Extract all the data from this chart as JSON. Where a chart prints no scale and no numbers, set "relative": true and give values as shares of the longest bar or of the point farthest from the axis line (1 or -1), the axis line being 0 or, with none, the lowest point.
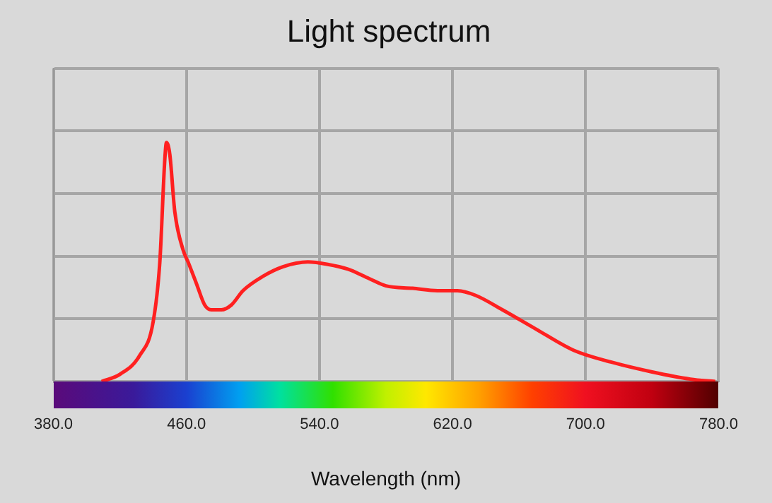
{
  "chart_data": {
    "type": "line",
    "title": "Light spectrum",
    "xlabel": "Wavelength (nm)",
    "relative": true,
    "grid": true,
    "marker": "none",
    "line_style": "solid",
    "legend": false,
    "x": [
      409,
      420,
      432,
      440,
      444,
      447,
      448,
      450,
      453,
      458,
      461,
      466,
      471,
      475,
      481,
      487,
      494,
      506,
      518,
      533,
      545,
      557,
      570,
      580,
      596,
      611,
      623,
      634,
      650,
      670,
      693,
      716,
      740,
      763,
      778
    ],
    "xlim": [
      380,
      780
    ],
    "xticks": [
      {
        "value": 380,
        "label": "380.0"
      },
      {
        "value": 460,
        "label": "460.0"
      },
      {
        "value": 540,
        "label": "540.0"
      },
      {
        "value": 620,
        "label": "620.0"
      },
      {
        "value": 700,
        "label": "700.0"
      },
      {
        "value": 780,
        "label": "780.0"
      }
    ],
    "series": [
      {
        "color": "#ff2020",
        "values": [
          0,
          0.03,
          0.11,
          0.25,
          0.5,
          0.93,
          1,
          0.95,
          0.71,
          0.55,
          0.5,
          0.41,
          0.32,
          0.3,
          0.3,
          0.32,
          0.38,
          0.44,
          0.48,
          0.5,
          0.49,
          0.47,
          0.43,
          0.4,
          0.39,
          0.38,
          0.38,
          0.36,
          0.3,
          0.22,
          0.13,
          0.08,
          0.04,
          0.01,
          0
        ]
      }
    ]
  }
}
